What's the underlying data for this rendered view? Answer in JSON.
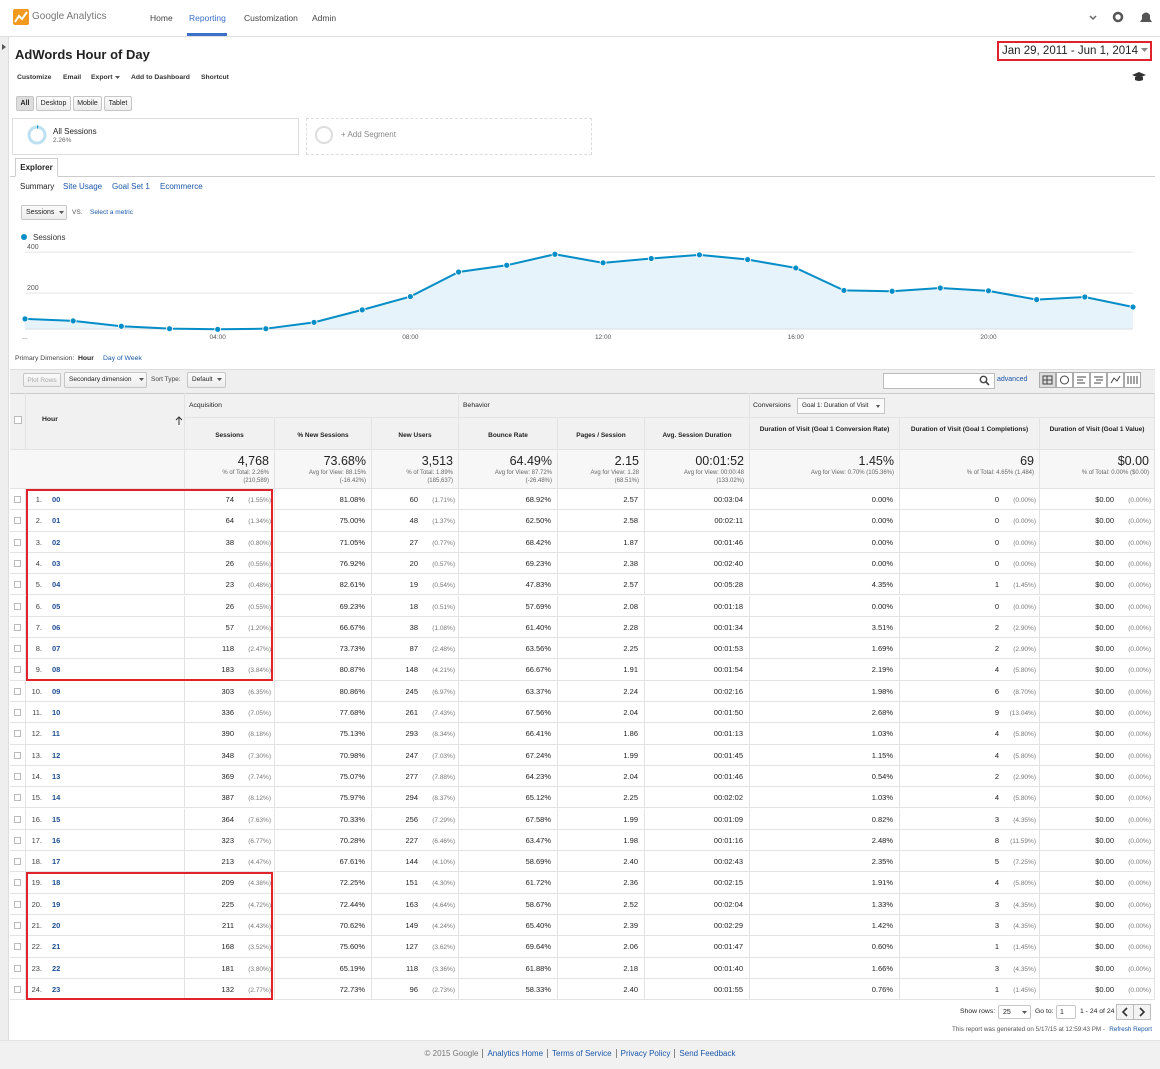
{
  "nav": {
    "logo": "Google Analytics",
    "tabs": [
      "Home",
      "Reporting",
      "Customization",
      "Admin"
    ]
  },
  "report": {
    "title": "AdWords Hour of Day",
    "date_range": "Jan 29, 2011 - Jun 1, 2014",
    "actions": [
      "Customize",
      "Email",
      "Export",
      "Add to Dashboard",
      "Shortcut"
    ],
    "devices": [
      "All",
      "Desktop",
      "Mobile",
      "Tablet"
    ]
  },
  "segments": {
    "active_name": "All Sessions",
    "active_share": "2.26%",
    "add": "+ Add Segment"
  },
  "explorer": {
    "tab": "Explorer",
    "subtabs": [
      "Summary",
      "Site Usage",
      "Goal Set 1",
      "Ecommerce"
    ],
    "metric": "Sessions",
    "vs": "VS.",
    "select_metric": "Select a metric"
  },
  "chart_data": {
    "type": "line",
    "categories": [
      "...",
      null,
      null,
      null,
      "04:00",
      null,
      null,
      null,
      "08:00",
      null,
      null,
      null,
      "12:00",
      null,
      null,
      null,
      "16:00",
      null,
      null,
      null,
      "20:00",
      null,
      null,
      null
    ],
    "series": [
      {
        "name": "Sessions",
        "color": "#058dc7",
        "values": [
          74,
          64,
          38,
          26,
          23,
          26,
          57,
          118,
          183,
          303,
          336,
          390,
          348,
          369,
          387,
          364,
          323,
          213,
          209,
          225,
          211,
          168,
          181,
          132
        ]
      }
    ],
    "ylim": [
      0,
      440
    ],
    "yticks": [
      200,
      400
    ],
    "grid": true
  },
  "dimension": {
    "label": "Primary Dimension:",
    "options": [
      "Hour",
      "Day of Week"
    ]
  },
  "controls": {
    "plot_rows": "Plot Rows",
    "secondary_dimension": "Secondary dimension",
    "sort_type": "Sort Type:",
    "sort_value": "Default",
    "advanced": "advanced"
  },
  "table": {
    "groups": [
      "Acquisition",
      "Behavior",
      "Conversions"
    ],
    "goal_selector": "Goal 1: Duration of Visit",
    "columns": [
      "Hour",
      "Sessions",
      "% New Sessions",
      "New Users",
      "Bounce Rate",
      "Pages / Session",
      "Avg. Session Duration",
      "Duration of Visit (Goal 1 Conversion Rate)",
      "Duration of Visit (Goal 1 Completions)",
      "Duration of Visit (Goal 1 Value)"
    ],
    "totals": [
      {
        "value": "4,768",
        "detail": "% of Total: 2.26%",
        "detail2": "(210,589)"
      },
      {
        "value": "73.68%",
        "detail": "Avg for View: 88.15%",
        "detail2": "(-16.42%)"
      },
      {
        "value": "3,513",
        "detail": "% of Total: 1.89%",
        "detail2": "(185,637)"
      },
      {
        "value": "64.49%",
        "detail": "Avg for View: 87.72%",
        "detail2": "(-26.48%)"
      },
      {
        "value": "2.15",
        "detail": "Avg for View: 1.28",
        "detail2": "(68.51%)"
      },
      {
        "value": "00:01:52",
        "detail": "Avg for View: 00:00:48",
        "detail2": "(133.02%)"
      },
      {
        "value": "1.45%",
        "detail": "Avg for View: 0.70% (105.36%)"
      },
      {
        "value": "69",
        "detail": "% of Total: 4.65% (1,484)"
      },
      {
        "value": "$0.00",
        "detail": "% of Total: 0.00% ($0.00)"
      }
    ],
    "rows": [
      [
        "1.",
        "00",
        "74",
        "(1.55%)",
        "81.08%",
        "60",
        "(1.71%)",
        "68.92%",
        "2.57",
        "00:03:04",
        "0.00%",
        "0",
        "(0.00%)",
        "$0.00",
        "(0.00%)"
      ],
      [
        "2.",
        "01",
        "64",
        "(1.34%)",
        "75.00%",
        "48",
        "(1.37%)",
        "62.50%",
        "2.58",
        "00:02:11",
        "0.00%",
        "0",
        "(0.00%)",
        "$0.00",
        "(0.00%)"
      ],
      [
        "3.",
        "02",
        "38",
        "(0.80%)",
        "71.05%",
        "27",
        "(0.77%)",
        "68.42%",
        "1.87",
        "00:01:46",
        "0.00%",
        "0",
        "(0.00%)",
        "$0.00",
        "(0.00%)"
      ],
      [
        "4.",
        "03",
        "26",
        "(0.55%)",
        "76.92%",
        "20",
        "(0.57%)",
        "69.23%",
        "2.38",
        "00:02:40",
        "0.00%",
        "0",
        "(0.00%)",
        "$0.00",
        "(0.00%)"
      ],
      [
        "5.",
        "04",
        "23",
        "(0.48%)",
        "82.61%",
        "19",
        "(0.54%)",
        "47.83%",
        "2.57",
        "00:05:28",
        "4.35%",
        "1",
        "(1.45%)",
        "$0.00",
        "(0.00%)"
      ],
      [
        "6.",
        "05",
        "26",
        "(0.55%)",
        "69.23%",
        "18",
        "(0.51%)",
        "57.69%",
        "2.08",
        "00:01:18",
        "0.00%",
        "0",
        "(0.00%)",
        "$0.00",
        "(0.00%)"
      ],
      [
        "7.",
        "06",
        "57",
        "(1.20%)",
        "66.67%",
        "38",
        "(1.08%)",
        "61.40%",
        "2.28",
        "00:01:34",
        "3.51%",
        "2",
        "(2.90%)",
        "$0.00",
        "(0.00%)"
      ],
      [
        "8.",
        "07",
        "118",
        "(2.47%)",
        "73.73%",
        "87",
        "(2.48%)",
        "63.56%",
        "2.25",
        "00:01:53",
        "1.69%",
        "2",
        "(2.90%)",
        "$0.00",
        "(0.00%)"
      ],
      [
        "9.",
        "08",
        "183",
        "(3.84%)",
        "80.87%",
        "148",
        "(4.21%)",
        "66.67%",
        "1.91",
        "00:01:54",
        "2.19%",
        "4",
        "(5.80%)",
        "$0.00",
        "(0.00%)"
      ],
      [
        "10.",
        "09",
        "303",
        "(6.35%)",
        "80.86%",
        "245",
        "(6.97%)",
        "63.37%",
        "2.24",
        "00:02:16",
        "1.98%",
        "6",
        "(8.70%)",
        "$0.00",
        "(0.00%)"
      ],
      [
        "11.",
        "10",
        "336",
        "(7.05%)",
        "77.68%",
        "261",
        "(7.43%)",
        "67.56%",
        "2.04",
        "00:01:50",
        "2.68%",
        "9",
        "(13.04%)",
        "$0.00",
        "(0.00%)"
      ],
      [
        "12.",
        "11",
        "390",
        "(8.18%)",
        "75.13%",
        "293",
        "(8.34%)",
        "66.41%",
        "1.86",
        "00:01:13",
        "1.03%",
        "4",
        "(5.80%)",
        "$0.00",
        "(0.00%)"
      ],
      [
        "13.",
        "12",
        "348",
        "(7.30%)",
        "70.98%",
        "247",
        "(7.03%)",
        "67.24%",
        "1.99",
        "00:01:45",
        "1.15%",
        "4",
        "(5.80%)",
        "$0.00",
        "(0.00%)"
      ],
      [
        "14.",
        "13",
        "369",
        "(7.74%)",
        "75.07%",
        "277",
        "(7.88%)",
        "64.23%",
        "2.04",
        "00:01:46",
        "0.54%",
        "2",
        "(2.90%)",
        "$0.00",
        "(0.00%)"
      ],
      [
        "15.",
        "14",
        "387",
        "(8.12%)",
        "75.97%",
        "294",
        "(8.37%)",
        "65.12%",
        "2.25",
        "00:02:02",
        "1.03%",
        "4",
        "(5.80%)",
        "$0.00",
        "(0.00%)"
      ],
      [
        "16.",
        "15",
        "364",
        "(7.63%)",
        "70.33%",
        "256",
        "(7.29%)",
        "67.58%",
        "1.99",
        "00:01:09",
        "0.82%",
        "3",
        "(4.35%)",
        "$0.00",
        "(0.00%)"
      ],
      [
        "17.",
        "16",
        "323",
        "(6.77%)",
        "70.28%",
        "227",
        "(6.46%)",
        "63.47%",
        "1.98",
        "00:01:16",
        "2.48%",
        "8",
        "(11.59%)",
        "$0.00",
        "(0.00%)"
      ],
      [
        "18.",
        "17",
        "213",
        "(4.47%)",
        "67.61%",
        "144",
        "(4.10%)",
        "58.69%",
        "2.40",
        "00:02:43",
        "2.35%",
        "5",
        "(7.25%)",
        "$0.00",
        "(0.00%)"
      ],
      [
        "19.",
        "18",
        "209",
        "(4.38%)",
        "72.25%",
        "151",
        "(4.30%)",
        "61.72%",
        "2.36",
        "00:02:15",
        "1.91%",
        "4",
        "(5.80%)",
        "$0.00",
        "(0.00%)"
      ],
      [
        "20.",
        "19",
        "225",
        "(4.72%)",
        "72.44%",
        "163",
        "(4.64%)",
        "58.67%",
        "2.52",
        "00:02:04",
        "1.33%",
        "3",
        "(4.35%)",
        "$0.00",
        "(0.00%)"
      ],
      [
        "21.",
        "20",
        "211",
        "(4.43%)",
        "70.62%",
        "149",
        "(4.24%)",
        "65.40%",
        "2.39",
        "00:02:29",
        "1.42%",
        "3",
        "(4.35%)",
        "$0.00",
        "(0.00%)"
      ],
      [
        "22.",
        "21",
        "168",
        "(3.52%)",
        "75.60%",
        "127",
        "(3.62%)",
        "69.64%",
        "2.06",
        "00:01:47",
        "0.60%",
        "1",
        "(1.45%)",
        "$0.00",
        "(0.00%)"
      ],
      [
        "23.",
        "22",
        "181",
        "(3.80%)",
        "65.19%",
        "118",
        "(3.36%)",
        "61.88%",
        "2.18",
        "00:01:40",
        "1.66%",
        "3",
        "(4.35%)",
        "$0.00",
        "(0.00%)"
      ],
      [
        "24.",
        "23",
        "132",
        "(2.77%)",
        "72.73%",
        "96",
        "(2.73%)",
        "58.33%",
        "2.40",
        "00:01:55",
        "0.76%",
        "1",
        "(1.45%)",
        "$0.00",
        "(0.00%)"
      ]
    ]
  },
  "pagination": {
    "show_rows": "Show rows:",
    "rows_value": "25",
    "go_to": "Go to:",
    "page": "1",
    "range": "1 - 24 of 24",
    "generated": "This report was generated on 5/17/15 at 12:59:43 PM -",
    "refresh": "Refresh Report"
  },
  "footer": {
    "copyright": "© 2015 Google",
    "links": [
      "Analytics Home",
      "Terms of Service",
      "Privacy Policy",
      "Send Feedback"
    ]
  }
}
